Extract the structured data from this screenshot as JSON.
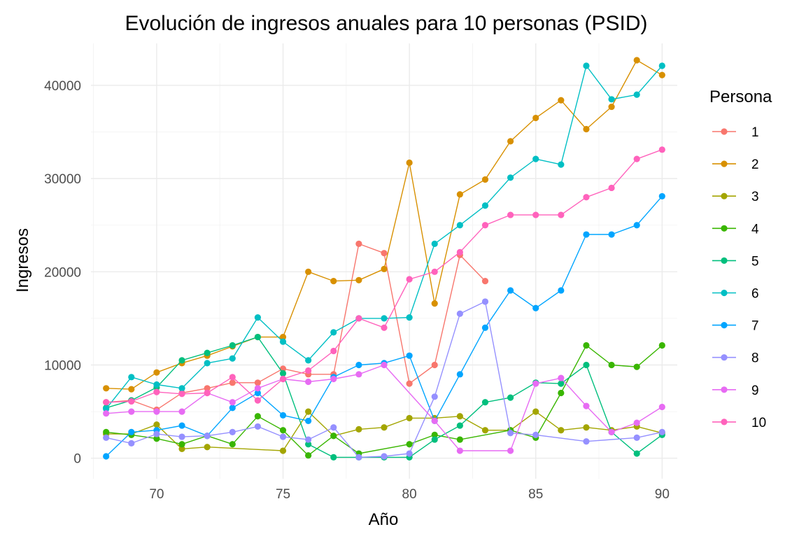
{
  "chart_data": {
    "type": "line",
    "title": "Evolución de ingresos anuales para 10 personas (PSID)",
    "xlabel": "Año",
    "ylabel": "Ingresos",
    "xlim": [
      67.4,
      90.6
    ],
    "ylim": [
      -2200,
      44500
    ],
    "x_ticks": [
      70,
      75,
      80,
      85,
      90
    ],
    "x_tick_labels": [
      "70",
      "75",
      "80",
      "85",
      "90"
    ],
    "y_ticks": [
      0,
      10000,
      20000,
      30000,
      40000
    ],
    "y_tick_labels": [
      "0",
      "10000",
      "20000",
      "30000",
      "40000"
    ],
    "grid": true,
    "legend": {
      "title": "Persona",
      "position": "right"
    },
    "series": [
      {
        "name": "1",
        "color": "#F8766D",
        "points": [
          [
            68,
            6000
          ],
          [
            69,
            6200
          ],
          [
            70,
            5200
          ],
          [
            71,
            7000
          ],
          [
            72,
            7500
          ],
          [
            73,
            8100
          ],
          [
            74,
            8100
          ],
          [
            75,
            9600
          ],
          [
            76,
            9000
          ],
          [
            77,
            9000
          ],
          [
            78,
            23000
          ],
          [
            79,
            22000
          ],
          [
            80,
            8000
          ],
          [
            81,
            10000
          ],
          [
            82,
            21800
          ],
          [
            83,
            19000
          ]
        ]
      },
      {
        "name": "2",
        "color": "#D89000",
        "points": [
          [
            68,
            7500
          ],
          [
            69,
            7400
          ],
          [
            70,
            9200
          ],
          [
            71,
            10200
          ],
          [
            72,
            11000
          ],
          [
            73,
            12000
          ],
          [
            74,
            13000
          ],
          [
            75,
            13000
          ],
          [
            76,
            20000
          ],
          [
            77,
            19000
          ],
          [
            78,
            19100
          ],
          [
            79,
            20300
          ],
          [
            80,
            31700
          ],
          [
            81,
            16600
          ],
          [
            82,
            28300
          ],
          [
            83,
            29900
          ],
          [
            84,
            34000
          ],
          [
            85,
            36500
          ],
          [
            86,
            38400
          ],
          [
            87,
            35300
          ],
          [
            88,
            37700
          ],
          [
            89,
            42700
          ],
          [
            90,
            41100
          ]
        ]
      },
      {
        "name": "3",
        "color": "#A3A500",
        "points": [
          [
            68,
            2600
          ],
          [
            69,
            2600
          ],
          [
            70,
            3600
          ],
          [
            71,
            1000
          ],
          [
            72,
            1200
          ],
          [
            75,
            800
          ],
          [
            76,
            5000
          ],
          [
            77,
            2400
          ],
          [
            78,
            3100
          ],
          [
            79,
            3300
          ],
          [
            80,
            4300
          ],
          [
            81,
            4300
          ],
          [
            82,
            4500
          ],
          [
            83,
            3000
          ],
          [
            84,
            3000
          ],
          [
            85,
            5000
          ],
          [
            86,
            3000
          ],
          [
            87,
            3300
          ],
          [
            88,
            3000
          ],
          [
            89,
            3400
          ],
          [
            90,
            2700
          ]
        ]
      },
      {
        "name": "4",
        "color": "#39B600",
        "points": [
          [
            68,
            2800
          ],
          [
            69,
            2500
          ],
          [
            70,
            2100
          ],
          [
            71,
            1500
          ],
          [
            72,
            2400
          ],
          [
            73,
            1500
          ],
          [
            74,
            4500
          ],
          [
            75,
            3000
          ],
          [
            76,
            300
          ],
          [
            77,
            2400
          ],
          [
            78,
            500
          ],
          [
            80,
            1500
          ],
          [
            81,
            2500
          ],
          [
            82,
            2000
          ],
          [
            84,
            3000
          ],
          [
            85,
            2200
          ],
          [
            86,
            7000
          ],
          [
            87,
            12100
          ],
          [
            88,
            10000
          ],
          [
            89,
            9800
          ],
          [
            90,
            12100
          ]
        ]
      },
      {
        "name": "5",
        "color": "#00BF7D",
        "points": [
          [
            68,
            5400
          ],
          [
            69,
            6200
          ],
          [
            70,
            7600
          ],
          [
            71,
            10500
          ],
          [
            72,
            11300
          ],
          [
            73,
            12100
          ],
          [
            74,
            13000
          ],
          [
            75,
            9100
          ],
          [
            76,
            1500
          ],
          [
            77,
            100
          ],
          [
            78,
            100
          ],
          [
            79,
            100
          ],
          [
            80,
            100
          ],
          [
            81,
            2000
          ],
          [
            82,
            3500
          ],
          [
            83,
            6000
          ],
          [
            84,
            6500
          ],
          [
            85,
            8100
          ],
          [
            86,
            8000
          ],
          [
            87,
            10000
          ],
          [
            88,
            2800
          ],
          [
            89,
            500
          ],
          [
            90,
            2500
          ]
        ]
      },
      {
        "name": "6",
        "color": "#00BFC4",
        "points": [
          [
            68,
            5300
          ],
          [
            69,
            8700
          ],
          [
            70,
            7900
          ],
          [
            71,
            7500
          ],
          [
            72,
            10200
          ],
          [
            73,
            10700
          ],
          [
            74,
            15100
          ],
          [
            75,
            12500
          ],
          [
            76,
            10500
          ],
          [
            77,
            13500
          ],
          [
            78,
            15000
          ],
          [
            79,
            15000
          ],
          [
            80,
            15100
          ],
          [
            81,
            23000
          ],
          [
            82,
            25000
          ],
          [
            83,
            27100
          ],
          [
            84,
            30100
          ],
          [
            85,
            32100
          ],
          [
            86,
            31500
          ],
          [
            87,
            42100
          ],
          [
            88,
            38500
          ],
          [
            89,
            39000
          ],
          [
            90,
            42100
          ]
        ]
      },
      {
        "name": "7",
        "color": "#00A5FF",
        "points": [
          [
            68,
            200
          ],
          [
            69,
            2800
          ],
          [
            70,
            3000
          ],
          [
            71,
            3500
          ],
          [
            72,
            2400
          ],
          [
            73,
            5400
          ],
          [
            74,
            7000
          ],
          [
            75,
            4600
          ],
          [
            76,
            4000
          ],
          [
            77,
            8700
          ],
          [
            78,
            10000
          ],
          [
            79,
            10200
          ],
          [
            80,
            11000
          ],
          [
            81,
            4000
          ],
          [
            82,
            9000
          ],
          [
            83,
            14000
          ],
          [
            84,
            18000
          ],
          [
            85,
            16100
          ],
          [
            86,
            18000
          ],
          [
            87,
            24000
          ],
          [
            88,
            24000
          ],
          [
            89,
            25000
          ],
          [
            90,
            28100
          ]
        ]
      },
      {
        "name": "8",
        "color": "#9590FF",
        "points": [
          [
            68,
            2200
          ],
          [
            69,
            1600
          ],
          [
            70,
            2600
          ],
          [
            71,
            2300
          ],
          [
            72,
            2400
          ],
          [
            73,
            2800
          ],
          [
            74,
            3400
          ],
          [
            75,
            2300
          ],
          [
            76,
            2000
          ],
          [
            77,
            3300
          ],
          [
            78,
            100
          ],
          [
            79,
            200
          ],
          [
            80,
            500
          ],
          [
            81,
            6600
          ],
          [
            82,
            15500
          ],
          [
            83,
            16800
          ],
          [
            84,
            2700
          ],
          [
            85,
            2500
          ],
          [
            87,
            1800
          ],
          [
            89,
            2200
          ],
          [
            90,
            2800
          ]
        ]
      },
      {
        "name": "9",
        "color": "#E76BF3",
        "points": [
          [
            68,
            4800
          ],
          [
            69,
            5000
          ],
          [
            70,
            5000
          ],
          [
            71,
            5000
          ],
          [
            72,
            7000
          ],
          [
            73,
            6000
          ],
          [
            74,
            7500
          ],
          [
            75,
            8500
          ],
          [
            76,
            8200
          ],
          [
            77,
            8500
          ],
          [
            78,
            9000
          ],
          [
            79,
            10000
          ],
          [
            81,
            4000
          ],
          [
            82,
            800
          ],
          [
            84,
            800
          ],
          [
            85,
            8000
          ],
          [
            86,
            8600
          ],
          [
            87,
            5600
          ],
          [
            88,
            2800
          ],
          [
            89,
            3800
          ],
          [
            90,
            5500
          ]
        ]
      },
      {
        "name": "10",
        "color": "#FF62BC",
        "points": [
          [
            68,
            6000
          ],
          [
            69,
            6100
          ],
          [
            70,
            7100
          ],
          [
            71,
            6900
          ],
          [
            72,
            7000
          ],
          [
            73,
            8700
          ],
          [
            74,
            6200
          ],
          [
            75,
            8500
          ],
          [
            76,
            9400
          ],
          [
            77,
            11500
          ],
          [
            78,
            15000
          ],
          [
            79,
            14000
          ],
          [
            80,
            19200
          ],
          [
            81,
            20000
          ],
          [
            82,
            22100
          ],
          [
            83,
            25000
          ],
          [
            84,
            26100
          ],
          [
            85,
            26100
          ],
          [
            86,
            26100
          ],
          [
            87,
            28000
          ],
          [
            88,
            29000
          ],
          [
            89,
            32100
          ],
          [
            90,
            33100
          ]
        ]
      }
    ]
  }
}
